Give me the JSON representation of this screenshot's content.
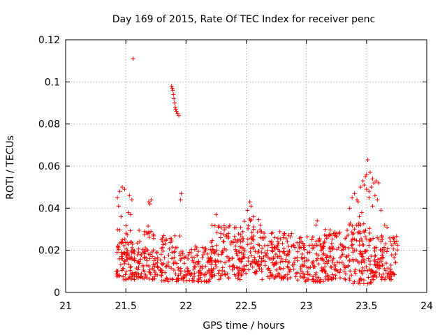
{
  "chart_data": {
    "type": "scatter",
    "title": "Day 169 of 2015, Rate Of TEC Index for receiver penc",
    "xlabel": "GPS time / hours",
    "ylabel": "ROTI / TECUs",
    "xlim": [
      21,
      24
    ],
    "ylim": [
      0,
      0.12
    ],
    "xticks": [
      "21",
      "21.5",
      "22",
      "22.5",
      "23",
      "23.5",
      "24"
    ],
    "yticks": [
      "0",
      "0.02",
      "0.04",
      "0.06",
      "0.08",
      "0.1",
      "0.12"
    ],
    "grid": true,
    "marker": "+",
    "series": [
      {
        "name": "ROTI",
        "color": "#ff0000",
        "outliers": [
          [
            21.56,
            0.111
          ],
          [
            21.88,
            0.098
          ],
          [
            21.885,
            0.097
          ],
          [
            21.89,
            0.096
          ],
          [
            21.895,
            0.094
          ],
          [
            21.9,
            0.092
          ],
          [
            21.905,
            0.09
          ],
          [
            21.91,
            0.088
          ],
          [
            21.915,
            0.087
          ],
          [
            21.92,
            0.086
          ],
          [
            21.93,
            0.085
          ],
          [
            21.94,
            0.084
          ],
          [
            21.96,
            0.047
          ],
          [
            21.955,
            0.044
          ],
          [
            21.45,
            0.048
          ],
          [
            21.47,
            0.05
          ],
          [
            21.49,
            0.049
          ],
          [
            21.43,
            0.045
          ],
          [
            21.55,
            0.044
          ],
          [
            21.53,
            0.046
          ],
          [
            21.44,
            0.041
          ],
          [
            21.69,
            0.043
          ],
          [
            21.71,
            0.044
          ],
          [
            21.7,
            0.042
          ],
          [
            21.52,
            0.038
          ],
          [
            21.54,
            0.037
          ],
          [
            21.46,
            0.036
          ],
          [
            22.25,
            0.037
          ],
          [
            22.53,
            0.043
          ],
          [
            22.54,
            0.041
          ],
          [
            22.51,
            0.039
          ],
          [
            22.56,
            0.036
          ],
          [
            23.45,
            0.05
          ],
          [
            23.48,
            0.051
          ],
          [
            23.5,
            0.049
          ],
          [
            23.52,
            0.048
          ],
          [
            23.47,
            0.053
          ],
          [
            23.49,
            0.055
          ],
          [
            23.5,
            0.056
          ],
          [
            23.51,
            0.063
          ],
          [
            23.53,
            0.057
          ],
          [
            23.55,
            0.054
          ],
          [
            23.56,
            0.052
          ],
          [
            23.54,
            0.05
          ],
          [
            23.58,
            0.053
          ],
          [
            23.6,
            0.052
          ],
          [
            23.57,
            0.046
          ],
          [
            23.59,
            0.044
          ],
          [
            23.62,
            0.039
          ],
          [
            23.4,
            0.047
          ],
          [
            23.42,
            0.044
          ],
          [
            23.43,
            0.043
          ],
          [
            23.38,
            0.045
          ],
          [
            23.36,
            0.04
          ],
          [
            23.46,
            0.038
          ],
          [
            23.44,
            0.036
          ],
          [
            23.55,
            0.041
          ],
          [
            23.52,
            0.045
          ],
          [
            23.65,
            0.032
          ],
          [
            23.67,
            0.031
          ],
          [
            23.08,
            0.032
          ],
          [
            23.09,
            0.034
          ]
        ],
        "bands": [
          {
            "x_range": [
              21.42,
              21.6
            ],
            "y_range": [
              0.006,
              0.024
            ],
            "count": 90
          },
          {
            "x_range": [
              21.42,
              21.55
            ],
            "y_range": [
              0.018,
              0.035
            ],
            "count": 18
          },
          {
            "x_range": [
              21.6,
              21.8
            ],
            "y_range": [
              0.006,
              0.022
            ],
            "count": 80
          },
          {
            "x_range": [
              21.6,
              21.75
            ],
            "y_range": [
              0.024,
              0.034
            ],
            "count": 14
          },
          {
            "x_range": [
              21.78,
              21.95
            ],
            "y_range": [
              0.005,
              0.027
            ],
            "count": 70
          },
          {
            "x_range": [
              21.95,
              22.2
            ],
            "y_range": [
              0.005,
              0.022
            ],
            "count": 110
          },
          {
            "x_range": [
              22.2,
              22.45
            ],
            "y_range": [
              0.006,
              0.032
            ],
            "count": 130
          },
          {
            "x_range": [
              22.45,
              22.62
            ],
            "y_range": [
              0.008,
              0.035
            ],
            "count": 90
          },
          {
            "x_range": [
              22.62,
              22.9
            ],
            "y_range": [
              0.006,
              0.029
            ],
            "count": 140
          },
          {
            "x_range": [
              22.9,
              23.15
            ],
            "y_range": [
              0.005,
              0.027
            ],
            "count": 120
          },
          {
            "x_range": [
              23.15,
              23.35
            ],
            "y_range": [
              0.006,
              0.03
            ],
            "count": 100
          },
          {
            "x_range": [
              23.35,
              23.55
            ],
            "y_range": [
              0.004,
              0.033
            ],
            "count": 110
          },
          {
            "x_range": [
              23.55,
              23.76
            ],
            "y_range": [
              0.006,
              0.027
            ],
            "count": 100
          }
        ]
      }
    ]
  }
}
